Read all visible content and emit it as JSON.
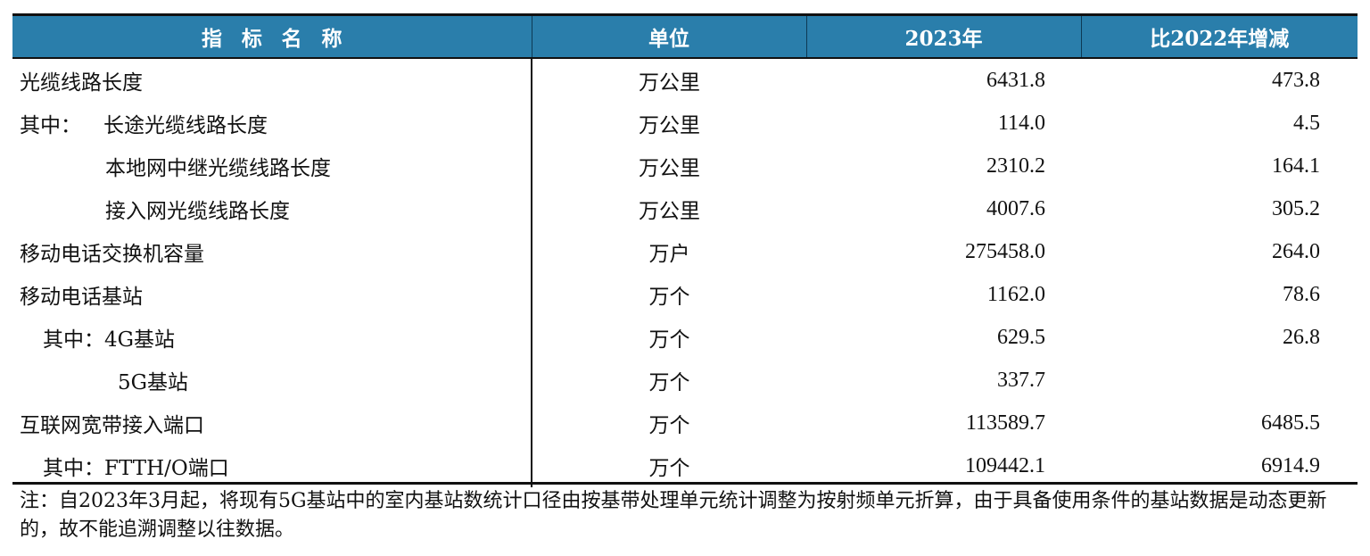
{
  "table": {
    "headers": [
      "指标名称",
      "单位",
      "2023年",
      "比2022年增减"
    ],
    "rows": [
      {
        "name": "光缆线路长度",
        "unit": "万公里",
        "v2023": "6431.8",
        "diff": "473.8"
      },
      {
        "prefix": "其中：",
        "name": "长途光缆线路长度",
        "unit": "万公里",
        "v2023": "114.0",
        "diff": "4.5"
      },
      {
        "name": "本地网中继光缆线路长度",
        "unit": "万公里",
        "v2023": "2310.2",
        "diff": "164.1"
      },
      {
        "name": "接入网光缆线路长度",
        "unit": "万公里",
        "v2023": "4007.6",
        "diff": "305.2"
      },
      {
        "name": "移动电话交换机容量",
        "unit": "万户",
        "v2023": "275458.0",
        "diff": "264.0"
      },
      {
        "name": "移动电话基站",
        "unit": "万个",
        "v2023": "1162.0",
        "diff": "78.6"
      },
      {
        "name": "其中：4G基站",
        "unit": "万个",
        "v2023": "629.5",
        "diff": "26.8"
      },
      {
        "name": "5G基站",
        "unit": "万个",
        "v2023": "337.7",
        "diff": ""
      },
      {
        "name": "互联网宽带接入端口",
        "unit": "万个",
        "v2023": "113589.7",
        "diff": "6485.5"
      },
      {
        "name": "其中：FTTH/O端口",
        "unit": "万个",
        "v2023": "109442.1",
        "diff": "6914.9"
      }
    ]
  },
  "note": "注：自2023年3月起，将现有5G基站中的室内基站数统计口径由按基带处理单元统计调整为按射频单元折算，由于具备使用条件的基站数据是动态更新的，故不能追溯调整以往数据。"
}
